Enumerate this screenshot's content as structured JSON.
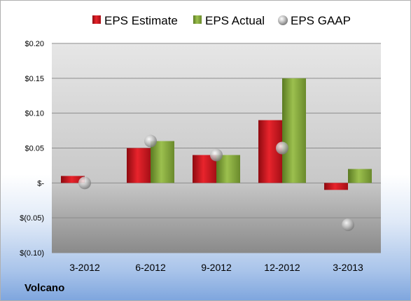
{
  "company": "Volcano",
  "chart_data": {
    "type": "bar",
    "categories": [
      "3-2012",
      "6-2012",
      "9-2012",
      "12-2012",
      "3-2013"
    ],
    "series": [
      {
        "name": "EPS Estimate",
        "kind": "bar",
        "color": "#c0141c",
        "values": [
          0.01,
          0.05,
          0.04,
          0.09,
          -0.01
        ]
      },
      {
        "name": "EPS Actual",
        "kind": "bar",
        "color": "#7a9a34",
        "values": [
          0.0,
          0.06,
          0.04,
          0.15,
          0.02
        ]
      },
      {
        "name": "EPS GAAP",
        "kind": "marker",
        "color": "#a8a8a8",
        "values": [
          0.0,
          0.06,
          0.04,
          0.05,
          -0.06
        ]
      }
    ],
    "y_ticks": [
      {
        "value": 0.2,
        "label": "$0.20"
      },
      {
        "value": 0.15,
        "label": "$0.15"
      },
      {
        "value": 0.1,
        "label": "$0.10"
      },
      {
        "value": 0.05,
        "label": "$0.05"
      },
      {
        "value": 0.0,
        "label": "$-"
      },
      {
        "value": -0.05,
        "label": "$(0.05)"
      },
      {
        "value": -0.1,
        "label": "$(0.10)"
      }
    ],
    "ylim": [
      -0.1,
      0.2
    ],
    "grid": true,
    "legend_position": "top"
  }
}
